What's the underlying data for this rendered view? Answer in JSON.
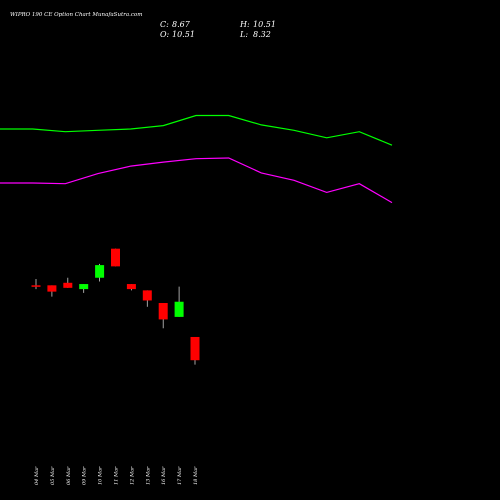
{
  "chart_data": {
    "type": "candlestick",
    "title": "WIPRO 190 CE Option Chart MunafaSutra.com",
    "ohlc_readout": {
      "close_label": "C:",
      "close": "8.67",
      "open_label": "O:",
      "open": "10.51",
      "high_label": "H:",
      "high": "10.51",
      "low_label": "L:",
      "low": "8.32"
    },
    "price_range": [
      7.5,
      17.0
    ],
    "candles": [
      {
        "date": "04 Mar",
        "open": 14.6,
        "close": 14.5,
        "high": 15.1,
        "low": 14.3
      },
      {
        "date": "05 Mar",
        "open": 14.6,
        "close": 14.1,
        "high": 14.6,
        "low": 13.7
      },
      {
        "date": "06 Mar",
        "open": 14.8,
        "close": 14.4,
        "high": 15.2,
        "low": 14.4
      },
      {
        "date": "09 Mar",
        "open": 14.3,
        "close": 14.7,
        "high": 14.7,
        "low": 14.0
      },
      {
        "date": "10 Mar",
        "open": 15.2,
        "close": 16.2,
        "high": 16.3,
        "low": 14.9
      },
      {
        "date": "11 Mar",
        "open": 17.5,
        "close": 16.1,
        "high": 17.5,
        "low": 16.1
      },
      {
        "date": "12 Mar",
        "open": 14.7,
        "close": 14.3,
        "high": 14.7,
        "low": 14.2
      },
      {
        "date": "13 Mar",
        "open": 14.2,
        "close": 13.4,
        "high": 14.2,
        "low": 12.9
      },
      {
        "date": "16 Mar",
        "open": 13.2,
        "close": 11.9,
        "high": 13.2,
        "low": 11.2
      },
      {
        "date": "17 Mar",
        "open": 12.1,
        "close": 13.3,
        "high": 14.5,
        "low": 12.1
      },
      {
        "date": "18 Mar",
        "open": 10.51,
        "close": 8.67,
        "high": 10.51,
        "low": 8.32
      }
    ],
    "series": [
      {
        "color": "#00ff00",
        "values": [
          32.0,
          32.0,
          31.6,
          31.8,
          32.0,
          32.5,
          34.0,
          34.0,
          32.6,
          31.8,
          30.7,
          31.6,
          29.6
        ]
      },
      {
        "color": "#ff00ff",
        "values": [
          24.0,
          24.0,
          23.9,
          25.4,
          26.5,
          27.1,
          27.6,
          27.7,
          25.5,
          24.4,
          22.6,
          23.9,
          21.1
        ]
      }
    ],
    "bands_range": [
      0,
      40
    ],
    "colors": {
      "up": "#00ff00",
      "down": "#ff0000",
      "background": "#000000",
      "text": "#ffffff"
    }
  }
}
